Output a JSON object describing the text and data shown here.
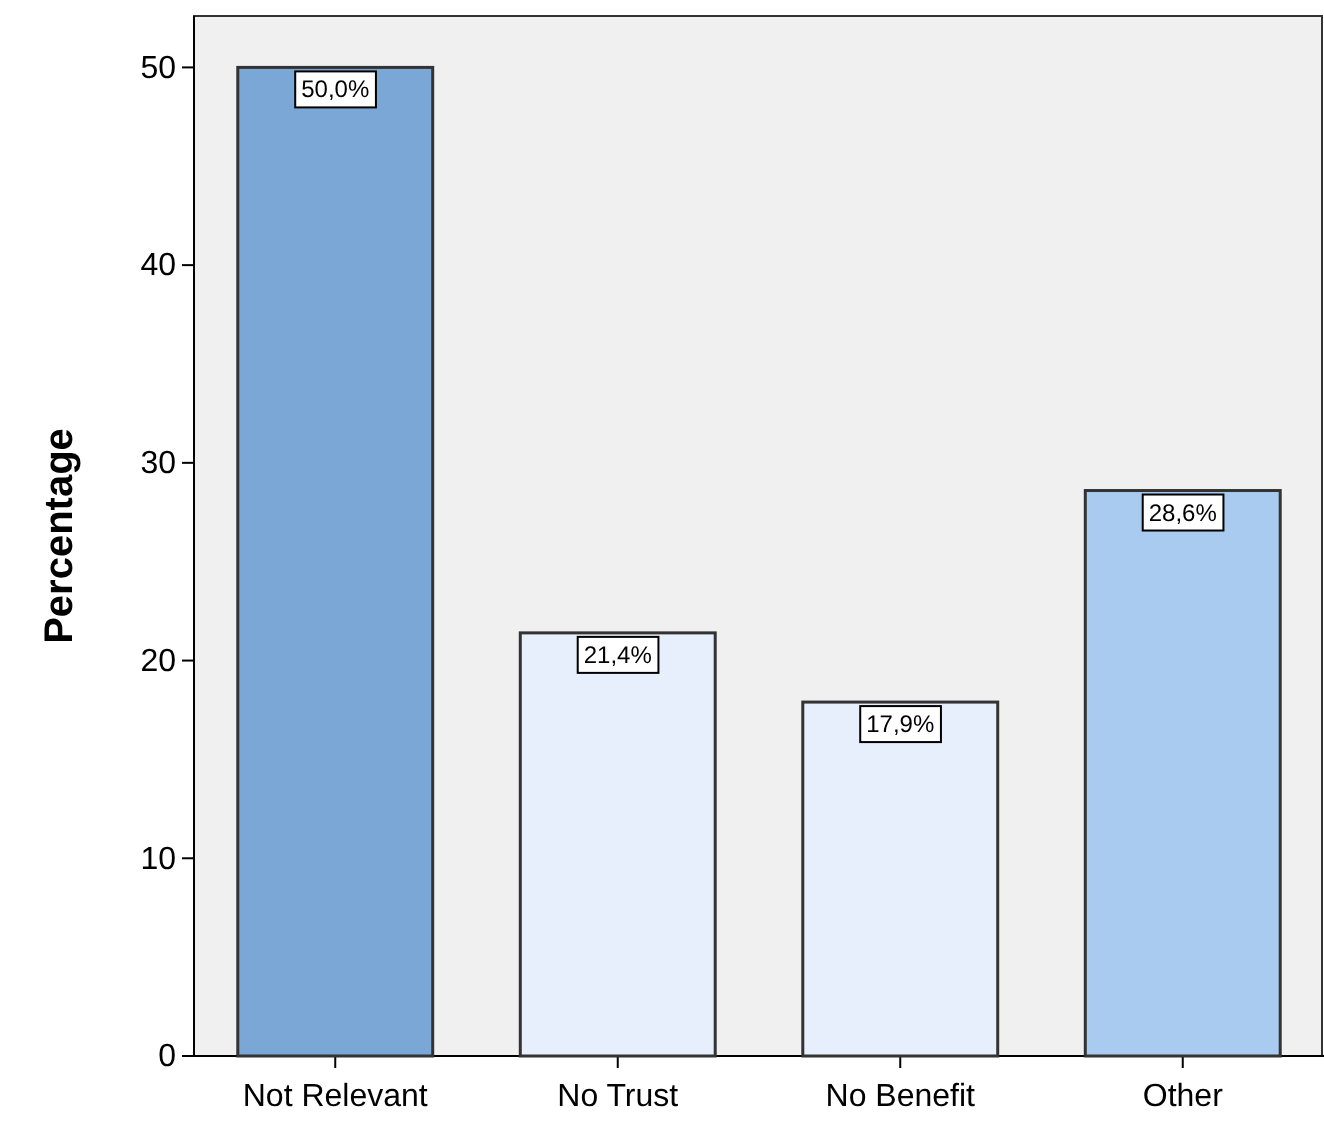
{
  "chart_data": {
    "type": "bar",
    "ylabel": "Percentage",
    "categories": [
      "Not Relevant",
      "No Trust",
      "No Benefit",
      "Other"
    ],
    "values": [
      50.0,
      21.4,
      17.9,
      28.6
    ],
    "colors": [
      "#7ba7d6",
      "#e6effb",
      "#e6effb",
      "#a8cbef"
    ],
    "value_labels": [
      "50,0%",
      "21,4%",
      "17,9%",
      "28,6%"
    ],
    "ylim": [
      0,
      52.6
    ],
    "yticks": [
      0,
      10,
      20,
      30,
      40,
      50
    ],
    "grid": false
  }
}
